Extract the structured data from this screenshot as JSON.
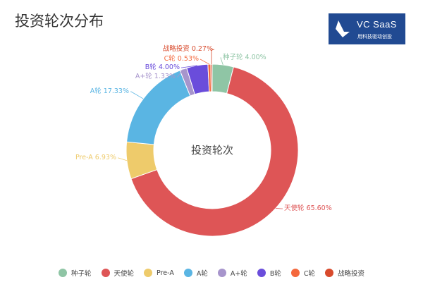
{
  "title": "投资轮次分布",
  "logo": {
    "main": "VC SaaS",
    "sub": "用科技驱动创投"
  },
  "chart_data": {
    "type": "pie",
    "center_label": "投资轮次",
    "slices": [
      {
        "name": "种子轮",
        "value": 4.0,
        "label": "4.00%",
        "color": "#8fc5a5"
      },
      {
        "name": "天使轮",
        "value": 65.6,
        "label": "65.60%",
        "color": "#de5556"
      },
      {
        "name": "Pre-A",
        "value": 6.93,
        "label": "6.93%",
        "color": "#eecb6b"
      },
      {
        "name": "A轮",
        "value": 17.33,
        "label": "17.33%",
        "color": "#5ab5e3"
      },
      {
        "name": "A+轮",
        "value": 1.33,
        "label": "1.33%",
        "color": "#a795cc"
      },
      {
        "name": "B轮",
        "value": 4.0,
        "label": "4.00%",
        "color": "#6a4ddb"
      },
      {
        "name": "C轮",
        "value": 0.53,
        "label": "0.53%",
        "color": "#f4683d"
      },
      {
        "name": "战略投资",
        "value": 0.27,
        "label": "0.27%",
        "color": "#d84a2c"
      }
    ]
  }
}
